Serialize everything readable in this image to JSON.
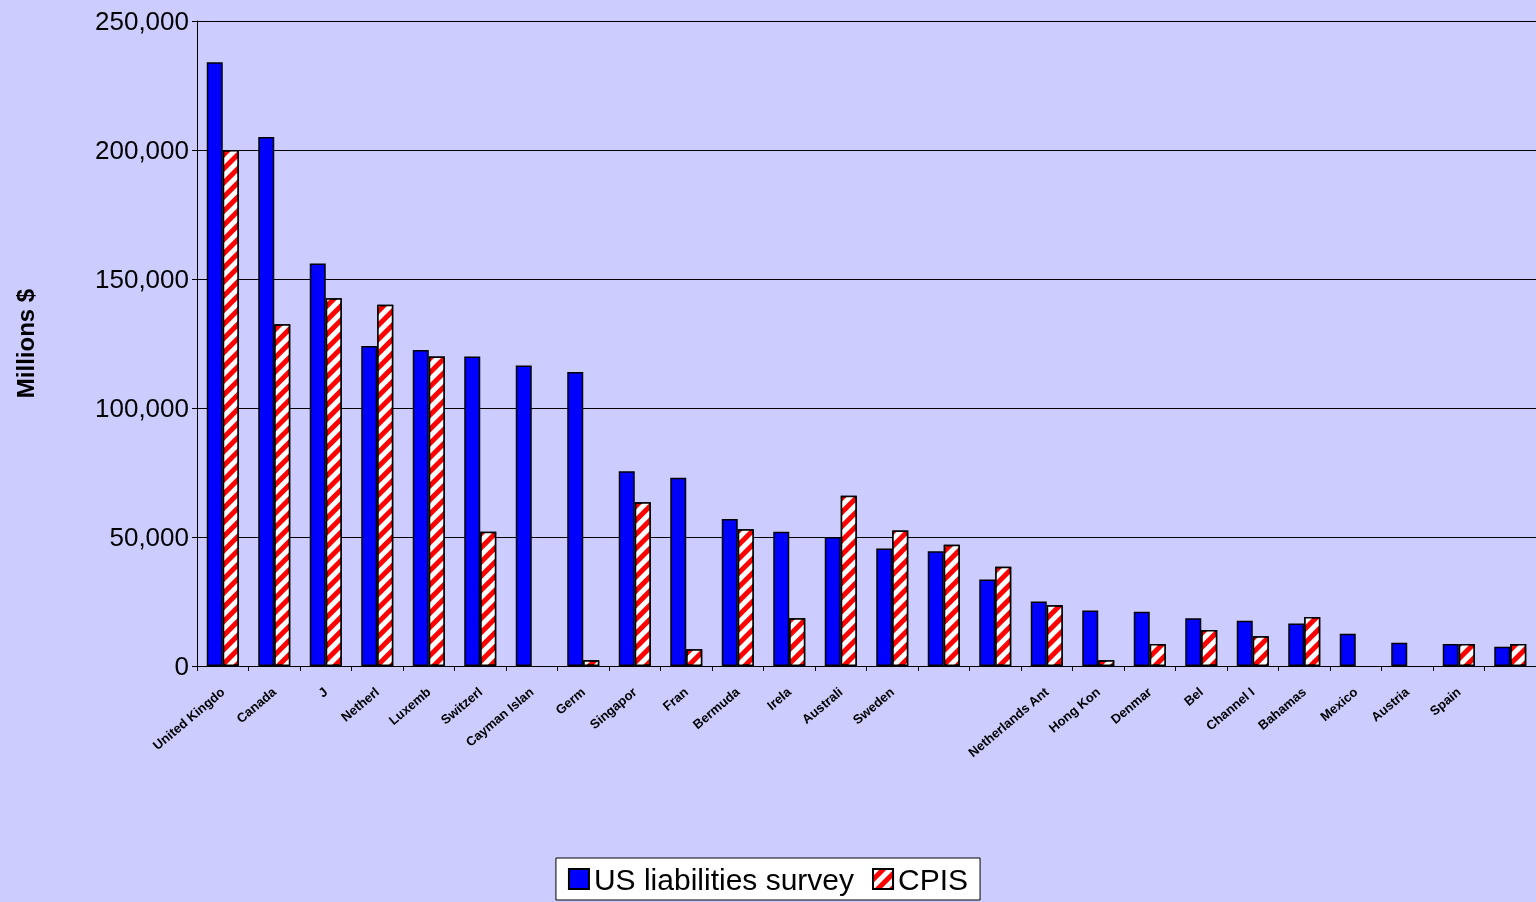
{
  "chart_data": {
    "type": "bar",
    "ylabel": "Millions $",
    "categories": [
      "United Kingdo",
      "Canada",
      "J",
      "Netherl",
      "Luxemb",
      "Switzerl",
      "Cayman Islan",
      "Germ",
      "Singapor",
      "Fran",
      "Bermuda",
      "Irela",
      "Australi",
      "Sweden",
      null,
      null,
      "Netherlands Ant",
      "Hong Kon",
      "Denmar",
      "Bel",
      "Channel I",
      "Bahamas",
      "Mexico",
      "Austria",
      "Spain",
      null
    ],
    "series": [
      {
        "name": "US liabilities survey",
        "color": "#0000ff",
        "values": [
          234000,
          205000,
          156000,
          124000,
          122500,
          120000,
          116500,
          114000,
          75500,
          73000,
          57000,
          52000,
          50000,
          45500,
          44500,
          33500,
          25000,
          21500,
          21000,
          18500,
          17500,
          16500,
          12500,
          9000,
          8500,
          7500
        ]
      },
      {
        "name": "CPIS",
        "color": "#ff0000",
        "values": [
          200000,
          132500,
          142500,
          140000,
          120000,
          52000,
          null,
          2200,
          63500,
          6500,
          53000,
          18500,
          66000,
          52500,
          47000,
          38500,
          23500,
          2200,
          8500,
          14000,
          11500,
          19000,
          null,
          null,
          8500,
          8500
        ]
      }
    ],
    "ylim": [
      0,
      250000
    ],
    "yticks": [
      0,
      {
        "value": 50000,
        "label": "50,000"
      },
      {
        "value": 100000,
        "label": "100,000"
      },
      {
        "value": 150000,
        "label": "150,000"
      },
      {
        "value": 200000,
        "label": "200,000"
      },
      {
        "value": 250000,
        "label": "250,000"
      }
    ],
    "grid": "y",
    "legend": "bottom"
  }
}
